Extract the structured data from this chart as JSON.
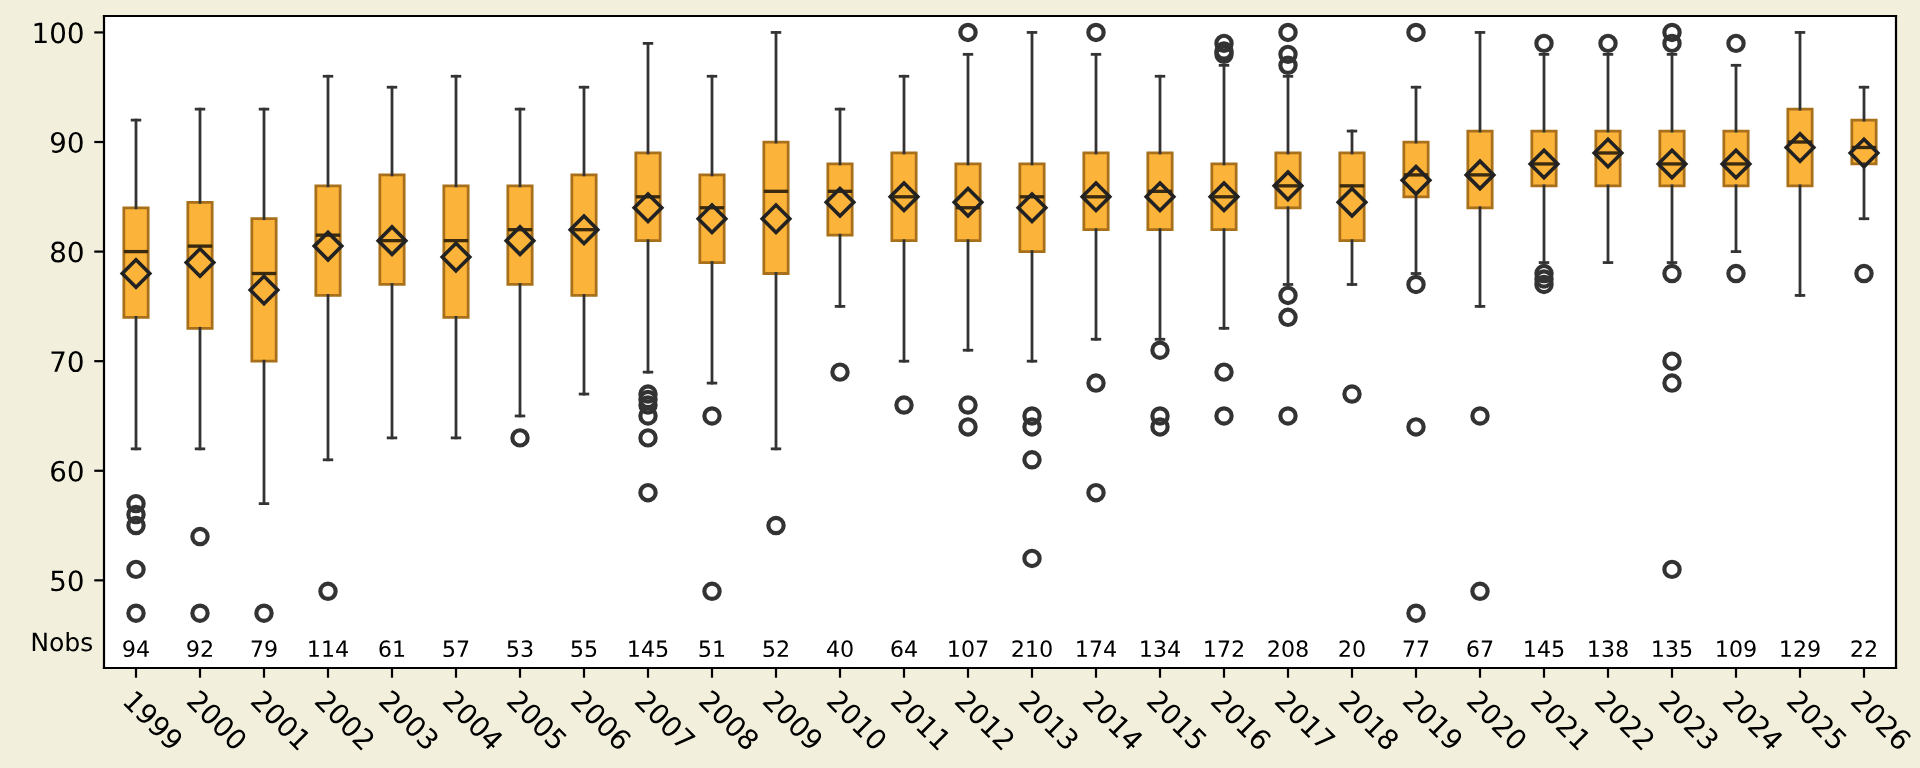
{
  "chart_data": {
    "type": "box",
    "categories": [
      "1999",
      "2000",
      "2001",
      "2002",
      "2003",
      "2004",
      "2005",
      "2006",
      "2007",
      "2008",
      "2009",
      "2010",
      "2011",
      "2012",
      "2013",
      "2014",
      "2015",
      "2016",
      "2017",
      "2018",
      "2019",
      "2020",
      "2021",
      "2022",
      "2023",
      "2024",
      "2025",
      "2026"
    ],
    "boxes": [
      {
        "low": 62,
        "q1": 74,
        "median": 80,
        "q3": 84,
        "high": 92,
        "mean": 78,
        "outliers": [
          57,
          56,
          55,
          51,
          47
        ]
      },
      {
        "low": 62,
        "q1": 73,
        "median": 80.5,
        "q3": 84.5,
        "high": 93,
        "mean": 79,
        "outliers": [
          54,
          47
        ]
      },
      {
        "low": 57,
        "q1": 70,
        "median": 78,
        "q3": 83,
        "high": 93,
        "mean": 76.5,
        "outliers": [
          47
        ]
      },
      {
        "low": 61,
        "q1": 76,
        "median": 81.5,
        "q3": 86,
        "high": 96,
        "mean": 80.5,
        "outliers": [
          49
        ]
      },
      {
        "low": 63,
        "q1": 77,
        "median": 81,
        "q3": 87,
        "high": 95,
        "mean": 81
      },
      {
        "low": 63,
        "q1": 74,
        "median": 81,
        "q3": 86,
        "high": 96,
        "mean": 79.5
      },
      {
        "low": 65,
        "q1": 77,
        "median": 82,
        "q3": 86,
        "high": 93,
        "mean": 81,
        "outliers": [
          63
        ]
      },
      {
        "low": 67,
        "q1": 76,
        "median": 82,
        "q3": 87,
        "high": 95,
        "mean": 82
      },
      {
        "low": 69,
        "q1": 81,
        "median": 85,
        "q3": 89,
        "high": 99,
        "mean": 84,
        "outliers": [
          67,
          66.5,
          66,
          65,
          63,
          58
        ]
      },
      {
        "low": 68,
        "q1": 79,
        "median": 84,
        "q3": 87,
        "high": 96,
        "mean": 83,
        "outliers": [
          65,
          49
        ]
      },
      {
        "low": 62,
        "q1": 78,
        "median": 85.5,
        "q3": 90,
        "high": 100,
        "mean": 83,
        "outliers": [
          55
        ]
      },
      {
        "low": 75,
        "q1": 81.5,
        "median": 85.5,
        "q3": 88,
        "high": 93,
        "mean": 84.5,
        "outliers": [
          69
        ]
      },
      {
        "low": 70,
        "q1": 81,
        "median": 85,
        "q3": 89,
        "high": 96,
        "mean": 85,
        "outliers": [
          66
        ]
      },
      {
        "low": 71,
        "q1": 81,
        "median": 84,
        "q3": 88,
        "high": 98,
        "mean": 84.5,
        "outliers": [
          100,
          66,
          64
        ]
      },
      {
        "low": 70,
        "q1": 80,
        "median": 85,
        "q3": 88,
        "high": 100,
        "mean": 84,
        "outliers": [
          65,
          64,
          61,
          52
        ]
      },
      {
        "low": 72,
        "q1": 82,
        "median": 85,
        "q3": 89,
        "high": 98,
        "mean": 85,
        "outliers": [
          100,
          68,
          58
        ]
      },
      {
        "low": 72,
        "q1": 82,
        "median": 85.5,
        "q3": 89,
        "high": 96,
        "mean": 85,
        "outliers": [
          71,
          65,
          64
        ]
      },
      {
        "low": 73,
        "q1": 82,
        "median": 85,
        "q3": 88,
        "high": 97,
        "mean": 85,
        "outliers": [
          99,
          98.3,
          98,
          69,
          65
        ]
      },
      {
        "low": 77,
        "q1": 84,
        "median": 86,
        "q3": 89,
        "high": 96,
        "mean": 86,
        "outliers": [
          100,
          98,
          97,
          76,
          74,
          65
        ]
      },
      {
        "low": 77,
        "q1": 81,
        "median": 86,
        "q3": 89,
        "high": 91,
        "mean": 84.5,
        "outliers": [
          67
        ]
      },
      {
        "low": 78,
        "q1": 85,
        "median": 87,
        "q3": 90,
        "high": 95,
        "mean": 86.5,
        "outliers": [
          100,
          77,
          64,
          47
        ]
      },
      {
        "low": 75,
        "q1": 84,
        "median": 87,
        "q3": 91,
        "high": 100,
        "mean": 87,
        "outliers": [
          65,
          49
        ]
      },
      {
        "low": 79,
        "q1": 86,
        "median": 88,
        "q3": 91,
        "high": 98,
        "mean": 88,
        "outliers": [
          99,
          78,
          77.5,
          77
        ]
      },
      {
        "low": 79,
        "q1": 86,
        "median": 89,
        "q3": 91,
        "high": 98,
        "mean": 89,
        "outliers": [
          99
        ]
      },
      {
        "low": 79,
        "q1": 86,
        "median": 88,
        "q3": 91,
        "high": 98,
        "mean": 88,
        "outliers": [
          100,
          99,
          78,
          70,
          68,
          51
        ]
      },
      {
        "low": 80,
        "q1": 86,
        "median": 88,
        "q3": 91,
        "high": 97,
        "mean": 88,
        "outliers": [
          99,
          78
        ]
      },
      {
        "low": 76,
        "q1": 86,
        "median": 90,
        "q3": 93,
        "high": 100,
        "mean": 89.5
      },
      {
        "low": 83,
        "q1": 88,
        "median": 89.5,
        "q3": 92,
        "high": 95,
        "mean": 89,
        "outliers": [
          78
        ]
      }
    ],
    "value_labels": [
      "94",
      "92",
      "79",
      "114",
      "61",
      "57",
      "53",
      "55",
      "145",
      "51",
      "52",
      "40",
      "64",
      "107",
      "210",
      "174",
      "134",
      "172",
      "208",
      "20",
      "77",
      "67",
      "145",
      "138",
      "135",
      "109",
      "129",
      "22"
    ],
    "annotations": [
      "Nobs"
    ],
    "color": "#fbb33a",
    "ylim": [
      42,
      101.5
    ],
    "yticks": [
      50,
      60,
      70,
      80,
      90,
      100
    ],
    "grid": false,
    "legend": false
  }
}
